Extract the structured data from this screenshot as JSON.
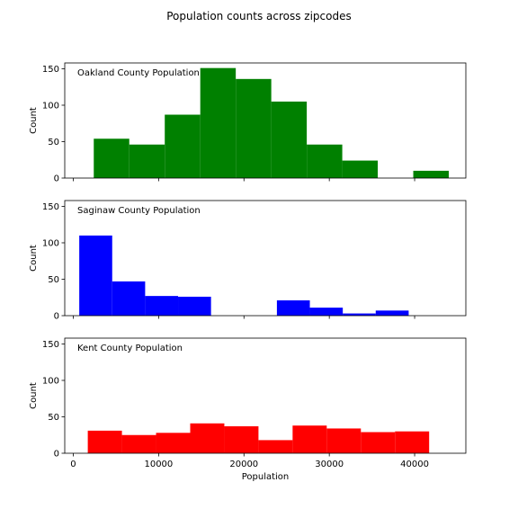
{
  "figure": {
    "title": "Population counts across zipcodes"
  },
  "chart_data": [
    {
      "type": "bar",
      "annotation": "Oakland County Population",
      "ylabel": "Count",
      "xlabel": "",
      "xlim": [
        -1000,
        46000
      ],
      "ylim": [
        0,
        158
      ],
      "xticks": [
        0,
        10000,
        20000,
        30000,
        40000
      ],
      "xtick_labels_shown": false,
      "yticks": [
        0,
        50,
        100,
        150
      ],
      "color": "#008000",
      "bins": [
        {
          "x0": 2400,
          "x1": 6560,
          "count": 54
        },
        {
          "x0": 6560,
          "x1": 10720,
          "count": 46
        },
        {
          "x0": 10720,
          "x1": 14880,
          "count": 87
        },
        {
          "x0": 14880,
          "x1": 19040,
          "count": 151
        },
        {
          "x0": 19040,
          "x1": 23200,
          "count": 136
        },
        {
          "x0": 23200,
          "x1": 27360,
          "count": 105
        },
        {
          "x0": 27360,
          "x1": 31520,
          "count": 46
        },
        {
          "x0": 31520,
          "x1": 35680,
          "count": 24
        },
        {
          "x0": 35680,
          "x1": 39840,
          "count": 0
        },
        {
          "x0": 39840,
          "x1": 44000,
          "count": 10
        }
      ]
    },
    {
      "type": "bar",
      "annotation": "Saginaw County Population",
      "ylabel": "Count",
      "xlabel": "",
      "xlim": [
        -1000,
        46000
      ],
      "ylim": [
        0,
        158
      ],
      "xticks": [
        0,
        10000,
        20000,
        30000,
        40000
      ],
      "xtick_labels_shown": false,
      "yticks": [
        0,
        50,
        100,
        150
      ],
      "color": "#0000ff",
      "bins": [
        {
          "x0": 700,
          "x1": 4560,
          "count": 110
        },
        {
          "x0": 4560,
          "x1": 8420,
          "count": 47
        },
        {
          "x0": 8420,
          "x1": 12280,
          "count": 27
        },
        {
          "x0": 12280,
          "x1": 16140,
          "count": 26
        },
        {
          "x0": 16140,
          "x1": 20000,
          "count": 0
        },
        {
          "x0": 20000,
          "x1": 23860,
          "count": 0
        },
        {
          "x0": 23860,
          "x1": 27720,
          "count": 21
        },
        {
          "x0": 27720,
          "x1": 31580,
          "count": 11
        },
        {
          "x0": 31580,
          "x1": 35440,
          "count": 3
        },
        {
          "x0": 35440,
          "x1": 39300,
          "count": 7
        }
      ]
    },
    {
      "type": "bar",
      "annotation": "Kent County Population",
      "ylabel": "Count",
      "xlabel": "Population",
      "xlim": [
        -1000,
        46000
      ],
      "ylim": [
        0,
        158
      ],
      "xticks": [
        0,
        10000,
        20000,
        30000,
        40000
      ],
      "xtick_labels": [
        "0",
        "10000",
        "20000",
        "30000",
        "40000"
      ],
      "xtick_labels_shown": true,
      "yticks": [
        0,
        50,
        100,
        150
      ],
      "color": "#ff0000",
      "bins": [
        {
          "x0": 1700,
          "x1": 5700,
          "count": 31
        },
        {
          "x0": 5700,
          "x1": 9700,
          "count": 25
        },
        {
          "x0": 9700,
          "x1": 13700,
          "count": 28
        },
        {
          "x0": 13700,
          "x1": 17700,
          "count": 41
        },
        {
          "x0": 17700,
          "x1": 21700,
          "count": 37
        },
        {
          "x0": 21700,
          "x1": 25700,
          "count": 18
        },
        {
          "x0": 25700,
          "x1": 29700,
          "count": 38
        },
        {
          "x0": 29700,
          "x1": 33700,
          "count": 34
        },
        {
          "x0": 33700,
          "x1": 37700,
          "count": 29
        },
        {
          "x0": 37700,
          "x1": 41700,
          "count": 30
        }
      ]
    }
  ]
}
